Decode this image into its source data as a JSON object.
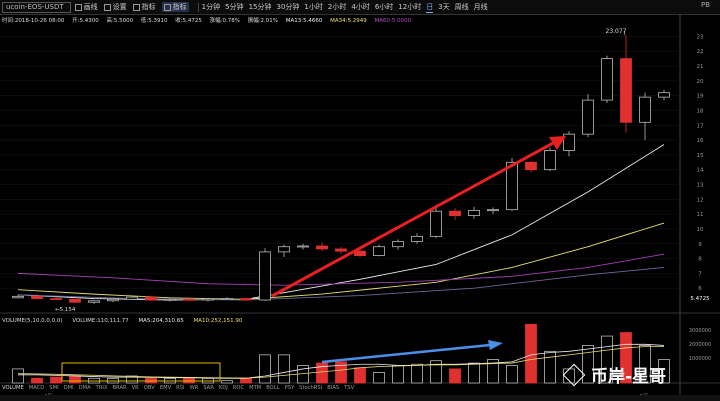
{
  "toolbar": {
    "symbol": "ucoin-EOS-USDT",
    "tools": [
      "画线",
      "设置",
      "指标",
      "指标"
    ],
    "periods": [
      "1分钟",
      "5分钟",
      "15分钟",
      "30分钟",
      "1小时",
      "2小时",
      "4小时",
      "6小时",
      "12小时",
      "日",
      "3天",
      "周线",
      "月线"
    ],
    "active_period": "日",
    "config": "PB"
  },
  "info": {
    "time": "时间:2018-10-26 08:00",
    "open": "开:5.4300",
    "high": "高:5.5000",
    "low": "低:5.3910",
    "close": "收:5.4725",
    "change": "涨幅:0.78%",
    "amp": "振幅:2.01%",
    "ma13": "MA13:5.4660",
    "ma34": "MA34:5.2949",
    "ma_purple": "MA60:5.0000"
  },
  "price_axis": [
    "23",
    "22",
    "21",
    "20",
    "19",
    "18",
    "17",
    "16",
    "15",
    "14",
    "13",
    "12",
    "11",
    "10",
    "9",
    "8",
    "7",
    "6",
    "5.4725"
  ],
  "annotations": {
    "high": "23.077",
    "low": "5.154"
  },
  "volume": {
    "title": "VOLUME(5,10,0,0,0,0)",
    "vol": "VOLUME:110,111.77",
    "ma5": "MA5:204,310.65",
    "ma10": "MA10:252,151.90",
    "axis": [
      "3000000",
      "2000000",
      "1000000"
    ]
  },
  "indicators": [
    "VOLUME",
    "MACD",
    "SMI",
    "DMI",
    "DMA",
    "TRIX",
    "BRAR",
    "VR",
    "OBV",
    "EMV",
    "RSI",
    "WR",
    "SAR",
    "KDJ",
    "ROC",
    "MTM",
    "BOLL",
    "PSY",
    "StochRSI",
    "BIAS",
    "TSV"
  ],
  "xlabels": {
    "a": "4月",
    "b": "5月"
  },
  "watermark": "币岸-星哥",
  "colors": {
    "up": "#e03030",
    "down": "#bbbbbb",
    "arrow_red": "#e82020",
    "arrow_blue": "#4a8fe8",
    "box": "#e6b800"
  },
  "candles": [
    [
      5.35,
      5.55,
      5.3,
      5.45
    ],
    [
      5.45,
      5.6,
      5.25,
      5.3
    ],
    [
      5.3,
      5.4,
      5.2,
      5.25
    ],
    [
      5.25,
      5.3,
      5.0,
      5.05
    ],
    [
      5.05,
      5.2,
      4.95,
      5.15
    ],
    [
      5.15,
      5.3,
      5.05,
      5.25
    ],
    [
      5.25,
      5.45,
      5.2,
      5.4
    ],
    [
      5.4,
      5.5,
      5.15,
      5.2
    ],
    [
      5.2,
      5.3,
      5.1,
      5.25
    ],
    [
      5.25,
      5.35,
      5.15,
      5.2
    ],
    [
      5.2,
      5.3,
      5.1,
      5.28
    ],
    [
      5.28,
      5.4,
      5.2,
      5.3
    ],
    [
      5.3,
      5.35,
      5.15,
      5.2
    ],
    [
      5.2,
      8.7,
      5.15,
      8.45
    ],
    [
      8.45,
      8.95,
      8.1,
      8.8
    ],
    [
      8.8,
      9.0,
      8.6,
      8.85
    ],
    [
      8.85,
      9.1,
      8.5,
      8.65
    ],
    [
      8.65,
      8.8,
      8.3,
      8.5
    ],
    [
      8.5,
      8.6,
      8.1,
      8.2
    ],
    [
      8.2,
      8.95,
      8.15,
      8.8
    ],
    [
      8.8,
      9.3,
      8.6,
      9.15
    ],
    [
      9.15,
      9.7,
      9.0,
      9.5
    ],
    [
      9.5,
      11.5,
      9.4,
      11.2
    ],
    [
      11.2,
      11.4,
      10.6,
      10.9
    ],
    [
      10.9,
      11.5,
      10.7,
      11.25
    ],
    [
      11.25,
      11.45,
      11.0,
      11.3
    ],
    [
      11.3,
      14.8,
      11.2,
      14.5
    ],
    [
      14.5,
      14.6,
      13.8,
      14.0
    ],
    [
      14.0,
      15.5,
      13.9,
      15.3
    ],
    [
      15.3,
      16.6,
      14.9,
      16.4
    ],
    [
      16.4,
      19.1,
      16.2,
      18.7
    ],
    [
      18.7,
      21.7,
      18.5,
      21.5
    ],
    [
      21.5,
      23.08,
      16.5,
      17.2
    ],
    [
      17.2,
      19.2,
      16.0,
      18.9
    ],
    [
      18.9,
      19.4,
      18.7,
      19.2
    ]
  ],
  "volumes": [
    120,
    40,
    50,
    60,
    40,
    40,
    60,
    40,
    40,
    40,
    40,
    20,
    40,
    240,
    240,
    150,
    170,
    180,
    130,
    90,
    150,
    160,
    190,
    120,
    170,
    200,
    150,
    500,
    270,
    120,
    320,
    400,
    430,
    320,
    200
  ]
}
